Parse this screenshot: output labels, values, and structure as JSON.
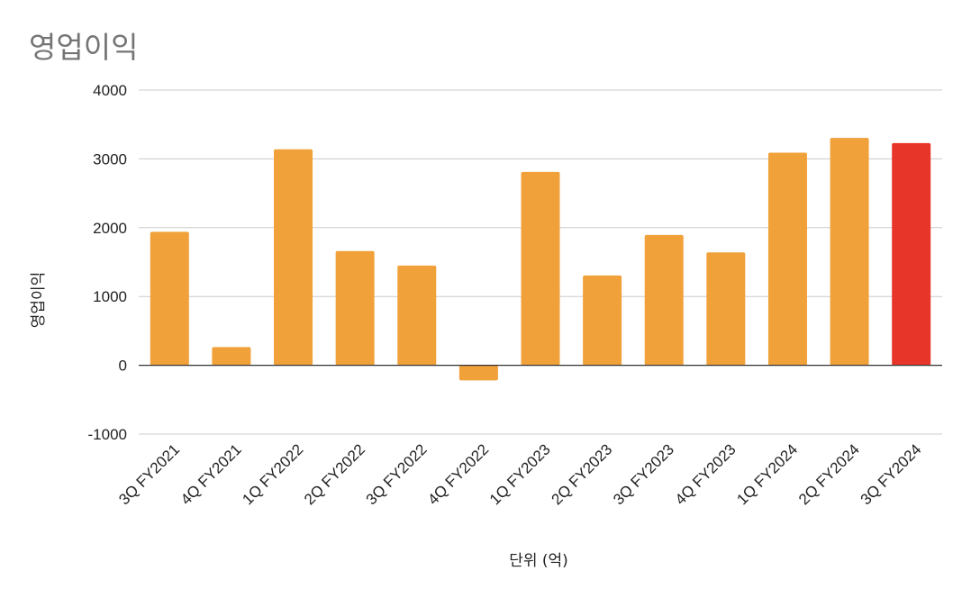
{
  "chart_data": {
    "type": "bar",
    "title": "영업이익",
    "xlabel": "단위 (억)",
    "ylabel": "영업이익",
    "ylim": [
      -1000,
      4000
    ],
    "yticks": [
      4000,
      3000,
      2000,
      1000,
      0,
      -1000
    ],
    "grid": true,
    "legend": "none",
    "categories": [
      "3Q FY2021",
      "4Q FY2021",
      "1Q FY2022",
      "2Q FY2022",
      "3Q FY2022",
      "4Q FY2022",
      "1Q FY2023",
      "2Q FY2023",
      "3Q FY2023",
      "4Q FY2023",
      "1Q FY2024",
      "2Q FY2024",
      "3Q FY2024"
    ],
    "values": [
      1940,
      265,
      3140,
      1660,
      1450,
      -220,
      2810,
      1305,
      1895,
      1640,
      3090,
      3305,
      3230
    ],
    "colors": {
      "default": "#F1A13A",
      "highlight": "#E8352A",
      "gridline": "#CCCCCC",
      "zeroline": "#333333"
    },
    "highlight_index": 12
  }
}
